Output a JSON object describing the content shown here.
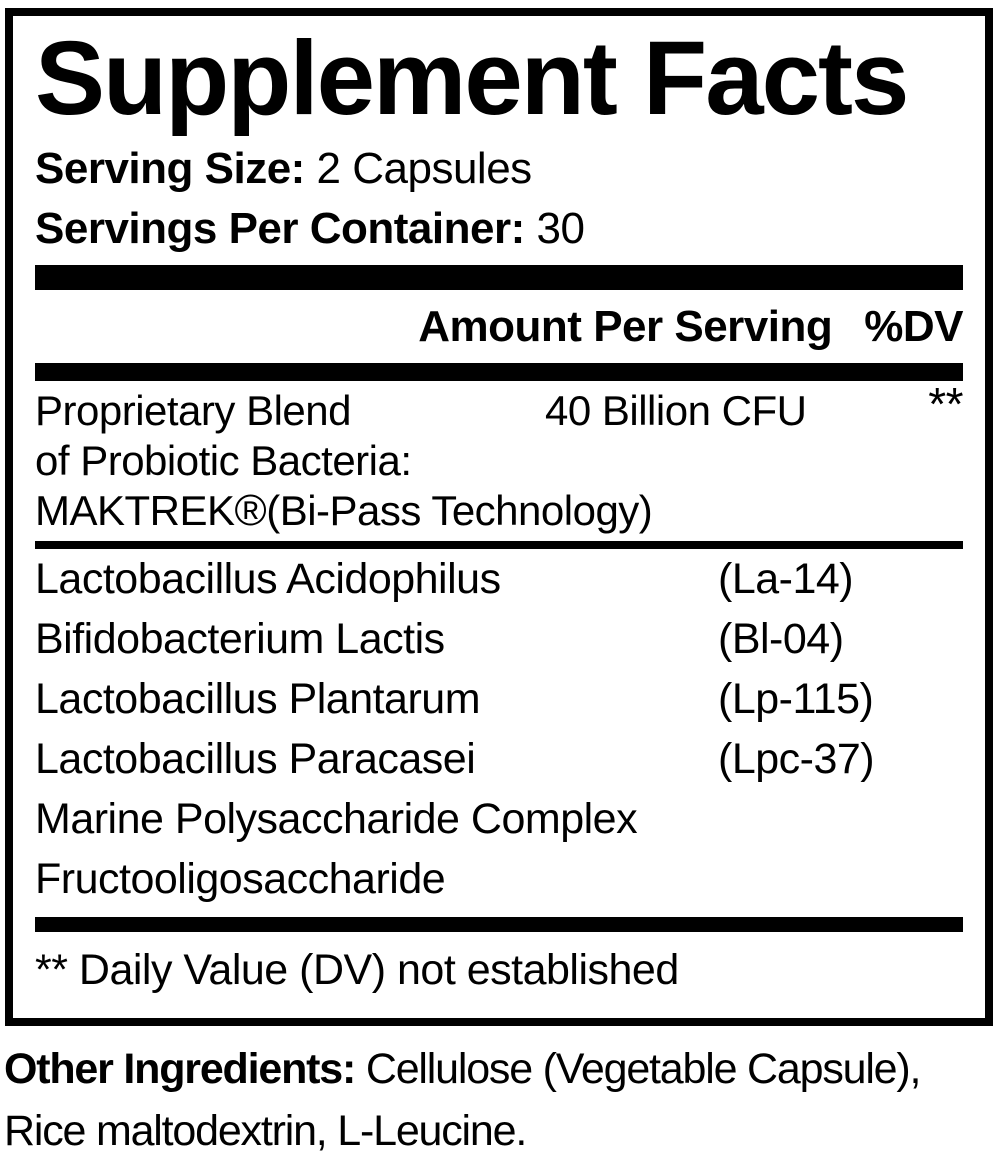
{
  "colors": {
    "text": "#000000",
    "background": "#ffffff"
  },
  "panel": {
    "title": "Supplement Facts",
    "serving_size_label": "Serving Size:",
    "serving_size_value": " 2 Capsules",
    "servings_per_container_label": "Servings Per Container:",
    "servings_per_container_value": " 30",
    "amount_per_serving_label": "Amount Per Serving",
    "dv_label": "%DV",
    "blend": {
      "name_line1": "Proprietary Blend",
      "name_line2": "of Probiotic Bacteria:",
      "brand": "MAKTREK",
      "registered_mark": "®",
      "brand_suffix": "(Bi-Pass Technology)",
      "amount": "40 Billion CFU",
      "dv": "**"
    },
    "ingredients": [
      {
        "name": "Lactobacillus Acidophilus",
        "code": "(La-14)"
      },
      {
        "name": "Bifidobacterium Lactis",
        "code": "(Bl-04)"
      },
      {
        "name": "Lactobacillus Plantarum",
        "code": "(Lp-115)"
      },
      {
        "name": "Lactobacillus Paracasei",
        "code": "(Lpc-37)"
      },
      {
        "name": "Marine Polysaccharide Complex",
        "code": ""
      },
      {
        "name": "Fructooligosaccharide",
        "code": ""
      }
    ],
    "footnote": "** Daily Value (DV) not established"
  },
  "other_ingredients": {
    "label": "Other Ingredients:",
    "value": " Cellulose (Vegetable Capsule), Rice maltodextrin, L-Leucine."
  }
}
